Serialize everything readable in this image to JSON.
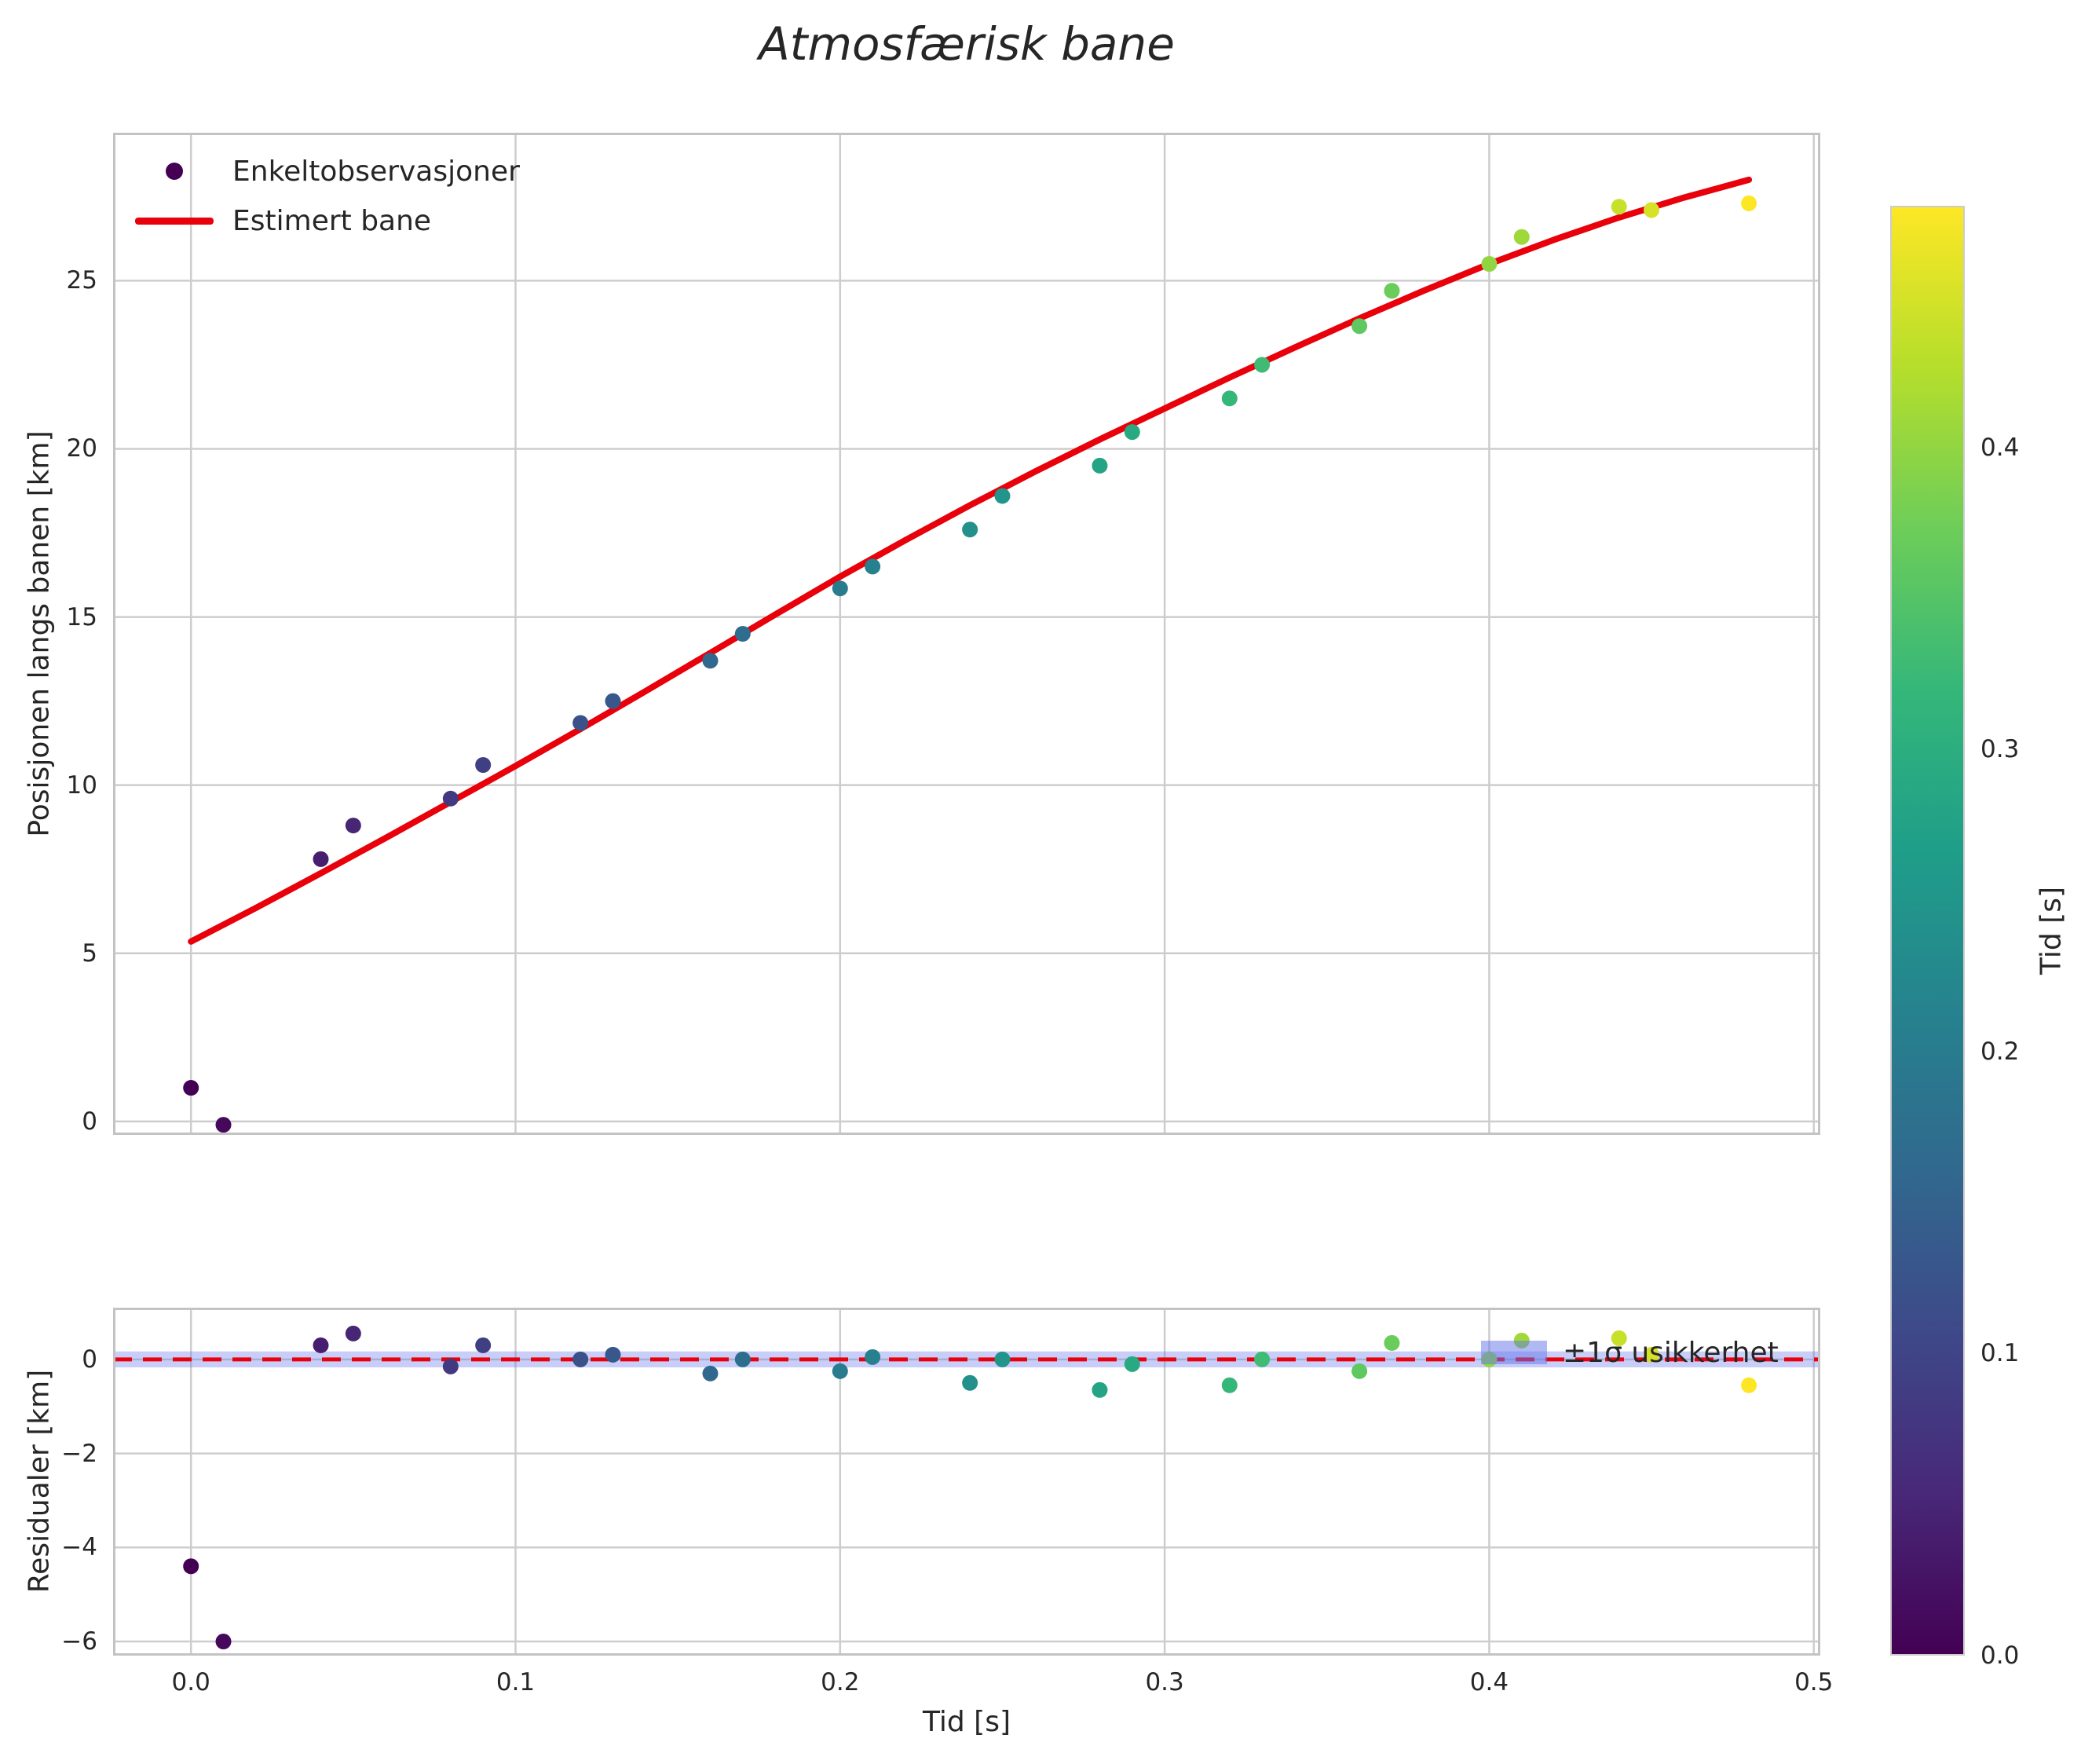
{
  "title": "Atmosfærisk bane",
  "top_plot": {
    "ylabel": "Posisjonen langs banen [km]",
    "legend": [
      {
        "label": "Enkeltobservasjoner",
        "marker": "dot",
        "marker_color": "#440154"
      },
      {
        "label": "Estimert bane",
        "marker": "line",
        "marker_color": "#e8000b"
      }
    ]
  },
  "residual_plot": {
    "ylabel": "Residualer [km]",
    "xlabel": "Tid [s]",
    "legend": {
      "label": "±1σ usikkerhet",
      "patch_color": "rgba(100,115,235,0.5)"
    }
  },
  "colorbar": {
    "label": "Tid [s]",
    "vmin": 0.0,
    "vmax": 0.48,
    "ticks": [
      0.0,
      0.1,
      0.2,
      0.3,
      0.4
    ],
    "tick_labels": [
      "0.0",
      "0.1",
      "0.2",
      "0.3",
      "0.4"
    ]
  },
  "colors": {
    "curve": "#e8000b",
    "zero_line": "#e8000b",
    "band_fill": "rgba(100,115,235,0.35)",
    "grid": "#cdcdcd",
    "spine": "#c3c3c3",
    "text": "#262626",
    "viridis_stops": [
      "#440154",
      "#482878",
      "#3e4989",
      "#31688e",
      "#26828e",
      "#1f9e89",
      "#35b779",
      "#6dcd59",
      "#b5de2b",
      "#fde725"
    ]
  },
  "chart_data": [
    {
      "type": "scatter",
      "name": "trajectory",
      "title": "Atmosfærisk bane",
      "ylabel": "Posisjonen langs banen [km]",
      "xlim": [
        -0.024,
        0.502
      ],
      "ylim": [
        -0.4,
        29.4
      ],
      "xticks": [
        0.0,
        0.1,
        0.2,
        0.3,
        0.4,
        0.5
      ],
      "xtick_labels": [],
      "yticks": [
        0,
        5,
        10,
        15,
        20,
        25
      ],
      "ytick_labels": [
        "0",
        "5",
        "10",
        "15",
        "20",
        "25"
      ],
      "grid": true,
      "legend_position": "upper left",
      "series": [
        {
          "name": "Enkeltobservasjoner",
          "type": "scatter",
          "color_by": "t",
          "t": [
            0.0,
            0.01,
            0.04,
            0.05,
            0.08,
            0.09,
            0.12,
            0.13,
            0.16,
            0.17,
            0.2,
            0.21,
            0.24,
            0.25,
            0.28,
            0.29,
            0.32,
            0.33,
            0.36,
            0.37,
            0.4,
            0.41,
            0.44,
            0.45,
            0.48
          ],
          "y": [
            1.0,
            -0.1,
            7.8,
            8.8,
            9.6,
            10.6,
            11.85,
            12.5,
            13.7,
            14.5,
            15.85,
            16.5,
            17.6,
            18.6,
            19.5,
            20.5,
            21.5,
            22.5,
            23.65,
            24.7,
            25.5,
            26.3,
            27.2,
            27.1,
            27.3
          ]
        },
        {
          "name": "Estimert bane",
          "type": "line",
          "color": "#e8000b",
          "t": [
            0.0,
            0.02,
            0.04,
            0.06,
            0.08,
            0.1,
            0.12,
            0.14,
            0.16,
            0.18,
            0.2,
            0.22,
            0.24,
            0.26,
            0.28,
            0.3,
            0.32,
            0.34,
            0.36,
            0.38,
            0.4,
            0.42,
            0.44,
            0.46,
            0.48
          ],
          "s": [
            5.35,
            6.35,
            7.38,
            8.43,
            9.5,
            10.57,
            11.67,
            12.79,
            13.93,
            15.07,
            16.2,
            17.28,
            18.32,
            19.32,
            20.28,
            21.2,
            22.12,
            23.01,
            23.88,
            24.71,
            25.5,
            26.22,
            26.88,
            27.47,
            28.0
          ]
        }
      ]
    },
    {
      "type": "scatter",
      "name": "residuals",
      "ylabel": "Residualer [km]",
      "xlabel": "Tid [s]",
      "xlim": [
        -0.024,
        0.502
      ],
      "ylim": [
        -6.3,
        1.1
      ],
      "xticks": [
        0.0,
        0.1,
        0.2,
        0.3,
        0.4,
        0.5
      ],
      "xtick_labels": [
        "0.0",
        "0.1",
        "0.2",
        "0.3",
        "0.4",
        "0.5"
      ],
      "yticks": [
        -6,
        -4,
        -2,
        0
      ],
      "ytick_labels": [
        "−6",
        "−4",
        "−2",
        "0"
      ],
      "grid": true,
      "zero_line": 0,
      "band": {
        "label": "±1σ usikkerhet",
        "lo": -0.17,
        "hi": 0.17
      },
      "series": [
        {
          "name": "residuals",
          "type": "scatter",
          "color_by": "t",
          "t": [
            0.0,
            0.01,
            0.04,
            0.05,
            0.08,
            0.09,
            0.12,
            0.13,
            0.16,
            0.17,
            0.2,
            0.21,
            0.24,
            0.25,
            0.28,
            0.29,
            0.32,
            0.33,
            0.36,
            0.37,
            0.4,
            0.41,
            0.44,
            0.45,
            0.48
          ],
          "r": [
            -4.4,
            -6.0,
            0.3,
            0.55,
            -0.15,
            0.3,
            0.0,
            0.1,
            -0.3,
            0.0,
            -0.25,
            0.05,
            -0.5,
            0.0,
            -0.65,
            -0.1,
            -0.55,
            0.0,
            -0.25,
            0.35,
            0.0,
            0.4,
            0.45,
            0.1,
            -0.55
          ]
        }
      ]
    }
  ]
}
